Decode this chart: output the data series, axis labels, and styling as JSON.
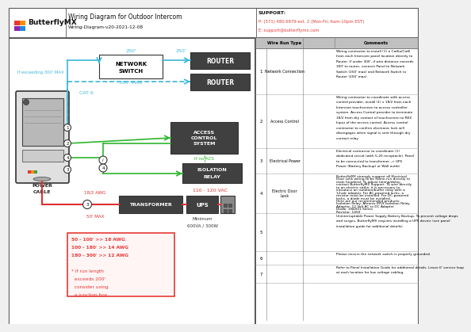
{
  "title": "Wiring Diagram for Outdoor Intercom",
  "subtitle": "Wiring-Diagram-v20-2021-12-08",
  "support_title": "SUPPORT:",
  "support_phone": "P: (571) 480.6879 ext. 2 (Mon-Fri, 6am-10pm EST)",
  "support_email": "E: support@butterflymx.com",
  "bg_color": "#f0f0f0",
  "cyan": "#3bb8d8",
  "green": "#2db62d",
  "red_wire": "#e03030",
  "box_dark": "#404040",
  "logo_red": "#e53935",
  "logo_orange": "#fb8c00",
  "logo_green": "#43a047",
  "logo_purple": "#8e24aa",
  "logo_blue": "#1e88e5",
  "wire_run_rows": [
    {
      "num": "1",
      "type": "Network Connection",
      "comment": "Wiring contractor to install (1) a Cat6a/Cat6\nfrom each Intercom panel location directly to\nRouter. If under 300', if wire distance exceeds\n300' to router, connect Panel to Network\nSwitch (250' max) and Network Switch to\nRouter (250' max)."
    },
    {
      "num": "2",
      "type": "Access Control",
      "comment": "Wiring contractor to coordinate with access\ncontrol provider, install (1) x 18/2 from each\nIntercom touchscreen to access controller\nsystem. Access Control provider to terminate\n18/2 from dry contact of touchscreen to REX\nInput of the access control. Access control\ncontractor to confirm electronic lock will\ndisengages when signal is sent through dry\ncontact relay."
    },
    {
      "num": "3",
      "type": "Electrical Power",
      "comment": "Electrical contractor to coordinate (1)\ndedicated circuit (with 5-20 receptacle). Panel\nto be connected to transformer -> UPS\nPower (Battery Backup) or Wall outlet"
    },
    {
      "num": "4",
      "type": "Electric Door Lock",
      "comment": "ButterflyMX strongly suggest all Electrical\nDoor Lock wiring to be home-run directly to\nmain headend. To adjust timing/delay,\ncontact ButterflyMX Support. To wire directly\nto an electric strike, it is necessary to\nintroduce an isolation/buffer relay with a\n12vdc adapter. For AC-powered locks, a\nresistor must be installed. For DC-powered\nlocks, a diode must be installed.\nHere are our recommended products:\nIsolation Relay: Altronix IR5S Isolation Relay\nAdapter: 12 Volt AC to DC Adapter\nDiode: 1N4001 Series\nResistor: 1450"
    },
    {
      "num": "5",
      "type": "",
      "comment": "Uninterruptable Power Supply Battery Backup. To prevent voltage drops\nand surges, ButterflyMX requires installing a UPS device (see panel\ninstallation guide for additional details)."
    },
    {
      "num": "6",
      "type": "",
      "comment": "Please ensure the network switch is properly grounded."
    },
    {
      "num": "7",
      "type": "",
      "comment": "Refer to Panel Installation Guide for additional details. Leave 6' service loop\nat each location for low voltage cabling."
    }
  ],
  "awg_lines": [
    "50 - 100' >> 18 AWG",
    "100 - 180' >> 14 AWG",
    "180 - 300' >> 12 AWG",
    "",
    "* If run length",
    "  exceeds 200'",
    "  consider using",
    "  a junction box"
  ]
}
